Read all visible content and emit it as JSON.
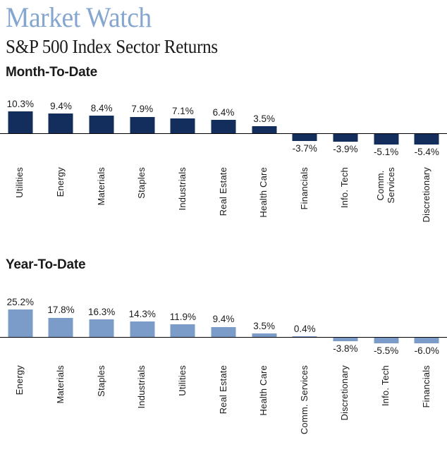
{
  "header": {
    "title": "Market Watch",
    "subtitle": "S&P 500 Index Sector Returns",
    "title_color": "#84a6cf",
    "text_color": "#1a1a1a"
  },
  "chart_data": [
    {
      "type": "bar",
      "title": "Month-To-Date",
      "categories": [
        "Utilities",
        "Energy",
        "Materials",
        "Staples",
        "Industrials",
        "Real Estate",
        "Health Care",
        "Financials",
        "Info. Tech",
        "Comm.\nServices",
        "Discretionary"
      ],
      "values": [
        10.3,
        9.4,
        8.4,
        7.9,
        7.1,
        6.4,
        3.5,
        -3.7,
        -3.9,
        -5.1,
        -5.4
      ],
      "labels": [
        "10.3%",
        "9.4%",
        "8.4%",
        "7.9%",
        "7.1%",
        "6.4%",
        "3.5%",
        "-3.7%",
        "-3.9%",
        "-5.1%",
        "-5.4%"
      ],
      "bar_color": "#132e5c",
      "axis_color": "#000000",
      "xlabel": "",
      "ylabel": "",
      "grid": false,
      "legend": "none",
      "value_labels": "outside-end"
    },
    {
      "type": "bar",
      "title": "Year-To-Date",
      "categories": [
        "Energy",
        "Materials",
        "Staples",
        "Industrials",
        "Utilities",
        "Real Estate",
        "Health Care",
        "Comm. Services",
        "Discretionary",
        "Info. Tech",
        "Financials"
      ],
      "values": [
        25.2,
        17.8,
        16.3,
        14.3,
        11.9,
        9.4,
        3.5,
        0.4,
        -3.8,
        -5.5,
        -6.0
      ],
      "labels": [
        "25.2%",
        "17.8%",
        "16.3%",
        "14.3%",
        "11.9%",
        "9.4%",
        "3.5%",
        "0.4%",
        "-3.8%",
        "-5.5%",
        "-6.0%"
      ],
      "bar_color": "#7b9cc8",
      "axis_color": "#000000",
      "xlabel": "",
      "ylabel": "",
      "grid": false,
      "legend": "none",
      "value_labels": "outside-end"
    }
  ]
}
